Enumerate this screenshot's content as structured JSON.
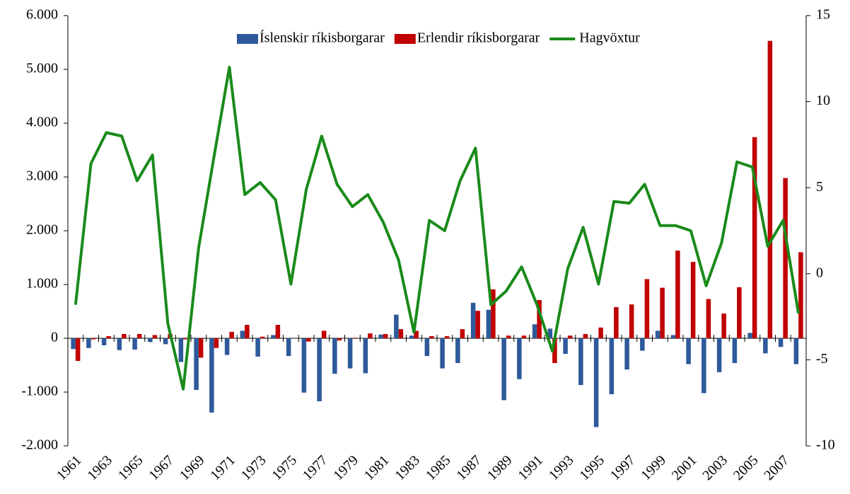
{
  "chart_data": {
    "type": "bar",
    "categories": [
      "1961",
      null,
      "1963",
      null,
      "1965",
      null,
      "1967",
      null,
      "1969",
      null,
      "1971",
      null,
      "1973",
      null,
      "1975",
      null,
      "1977",
      null,
      "1979",
      null,
      "1981",
      null,
      "1983",
      null,
      "1985",
      null,
      "1987",
      null,
      "1989",
      null,
      "1991",
      null,
      "1993",
      null,
      "1995",
      null,
      "1997",
      null,
      "1999",
      null,
      "2001",
      null,
      "2003",
      null,
      "2005",
      null,
      "2007",
      null
    ],
    "series": [
      {
        "name": "Íslenskir ríkisborgarar",
        "color": "#2e5a9c",
        "type": "bar",
        "values": [
          -200,
          -180,
          -130,
          -220,
          -210,
          -70,
          -110,
          -440,
          -960,
          -1380,
          -310,
          140,
          -340,
          60,
          -330,
          -1010,
          -1170,
          -660,
          -560,
          -650,
          70,
          440,
          50,
          -330,
          -560,
          -460,
          660,
          530,
          -1150,
          -760,
          260,
          180,
          -290,
          -870,
          -1650,
          -1040,
          -580,
          -230,
          140,
          60,
          -480,
          -1020,
          -630,
          -460,
          100,
          -280,
          -160,
          -480
        ]
      },
      {
        "name": "Erlendir ríkisborgarar",
        "color": "#c00000",
        "type": "bar",
        "values": [
          -420,
          -20,
          40,
          80,
          80,
          60,
          80,
          -20,
          -360,
          -180,
          120,
          250,
          30,
          250,
          0,
          -60,
          140,
          -40,
          10,
          90,
          80,
          170,
          140,
          40,
          40,
          170,
          510,
          910,
          50,
          50,
          710,
          -460,
          50,
          80,
          200,
          580,
          630,
          1100,
          940,
          1630,
          1420,
          730,
          460,
          950,
          3740,
          5530,
          2980,
          1600
        ]
      },
      {
        "name": "Hagvöxtur",
        "color": "#1a8a1a",
        "type": "line",
        "axis": "y2",
        "values": [
          -1.8,
          6.4,
          8.2,
          8.0,
          5.4,
          6.9,
          -2.9,
          -6.7,
          1.5,
          6.8,
          12.0,
          4.6,
          5.3,
          4.3,
          -0.6,
          4.9,
          8.0,
          5.2,
          3.9,
          4.6,
          3.0,
          0.8,
          -3.4,
          3.1,
          2.5,
          5.4,
          7.3,
          -1.8,
          -1.0,
          0.4,
          -1.8,
          -4.5,
          0.3,
          2.7,
          -0.6,
          4.2,
          4.1,
          5.2,
          2.8,
          2.8,
          2.5,
          -0.7,
          1.8,
          6.5,
          6.2,
          1.6,
          3.1,
          -2.3
        ]
      }
    ],
    "ylim": [
      -2000,
      6000
    ],
    "yticks": [
      {
        "value": -2000,
        "label": "-2.000"
      },
      {
        "value": -1000,
        "label": "-1.000"
      },
      0,
      {
        "value": 1000,
        "label": "1.000"
      },
      {
        "value": 2000,
        "label": "2.000"
      },
      {
        "value": 3000,
        "label": "3.000"
      },
      {
        "value": 4000,
        "label": "4.000"
      },
      {
        "value": 5000,
        "label": "5.000"
      },
      {
        "value": 6000,
        "label": "6.000"
      }
    ],
    "y2lim": [
      -10,
      15
    ],
    "y2ticks": [
      -10,
      -5,
      0,
      5,
      10,
      15
    ],
    "legend": "top"
  }
}
